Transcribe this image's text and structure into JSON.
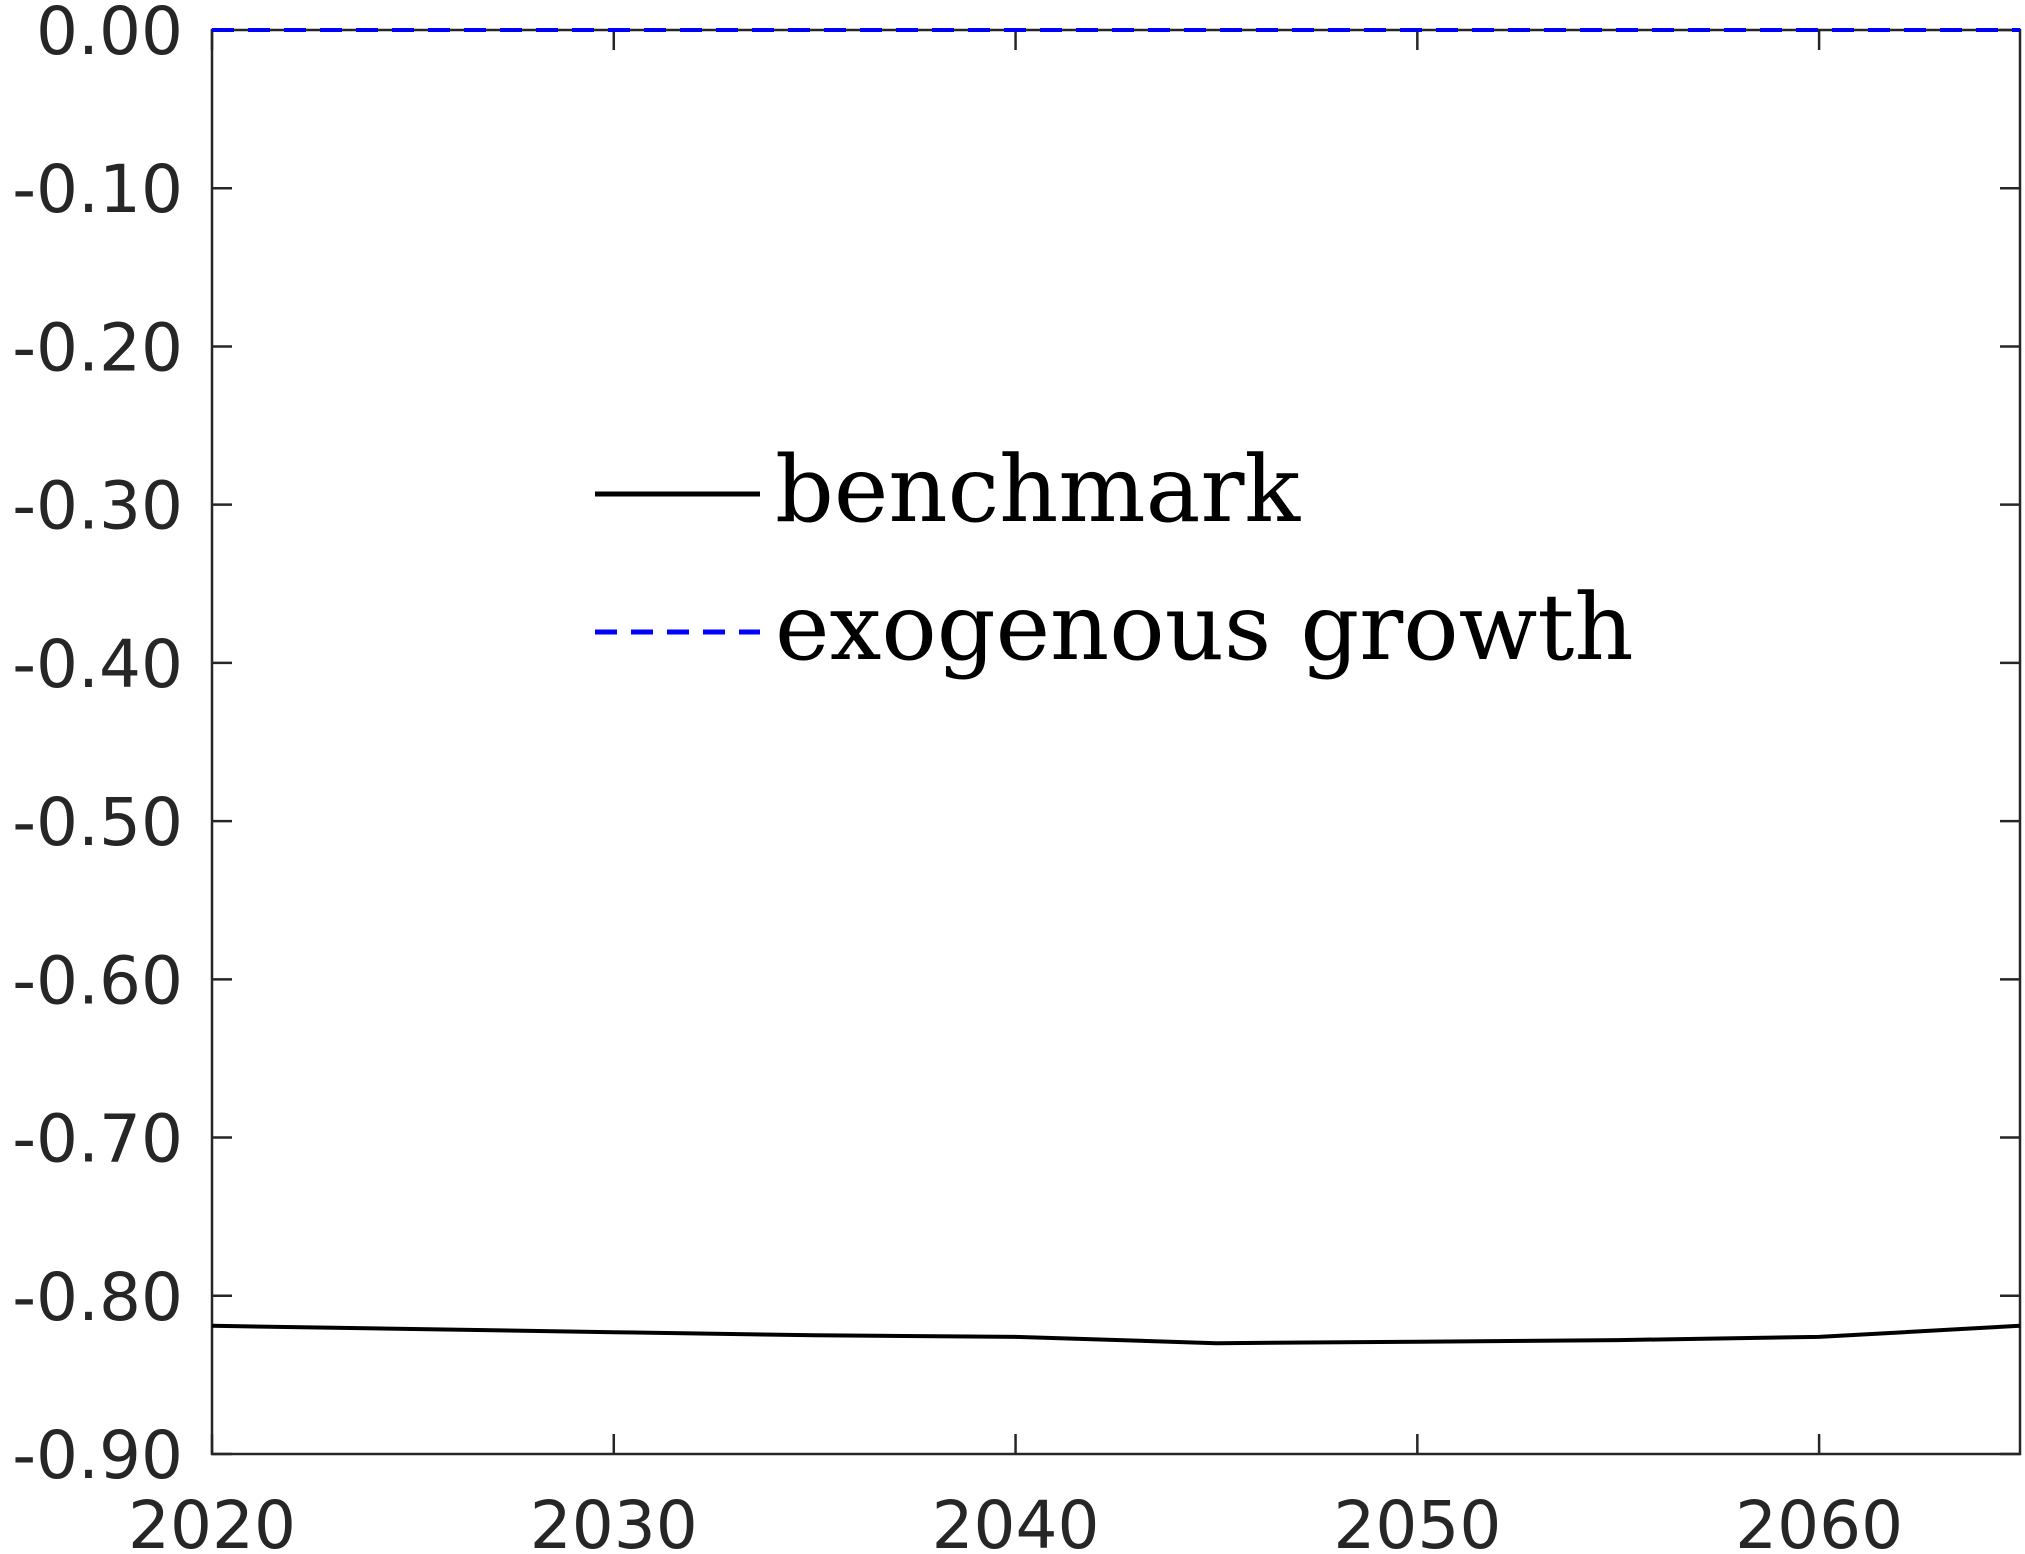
{
  "chart_data": {
    "type": "line",
    "title": "",
    "xlabel": "",
    "ylabel": "",
    "xlim": [
      2020,
      2065
    ],
    "ylim": [
      -0.9,
      0.0
    ],
    "x_ticks": [
      2020,
      2030,
      2040,
      2050,
      2060
    ],
    "x_tick_labels": [
      "2020",
      "2030",
      "2040",
      "2050",
      "2060"
    ],
    "y_ticks": [
      0.0,
      -0.1,
      -0.2,
      -0.3,
      -0.4,
      -0.5,
      -0.6,
      -0.7,
      -0.8,
      -0.9
    ],
    "y_tick_labels": [
      "0.00",
      "-0.10",
      "-0.20",
      "-0.30",
      "-0.40",
      "-0.50",
      "-0.60",
      "-0.70",
      "-0.80",
      "-0.90"
    ],
    "grid": false,
    "legend_position": "upper-center",
    "series": [
      {
        "name": "benchmark",
        "color": "#000000",
        "style": "solid",
        "x": [
          2020,
          2025,
          2030,
          2035,
          2040,
          2045,
          2050,
          2055,
          2060,
          2065
        ],
        "y": [
          -0.819,
          -0.821,
          -0.823,
          -0.825,
          -0.826,
          -0.83,
          -0.829,
          -0.828,
          -0.826,
          -0.819
        ]
      },
      {
        "name": "exogenous growth",
        "color": "#0000ff",
        "style": "dashed",
        "x": [
          2020,
          2065
        ],
        "y": [
          0.0,
          0.0
        ]
      }
    ]
  }
}
